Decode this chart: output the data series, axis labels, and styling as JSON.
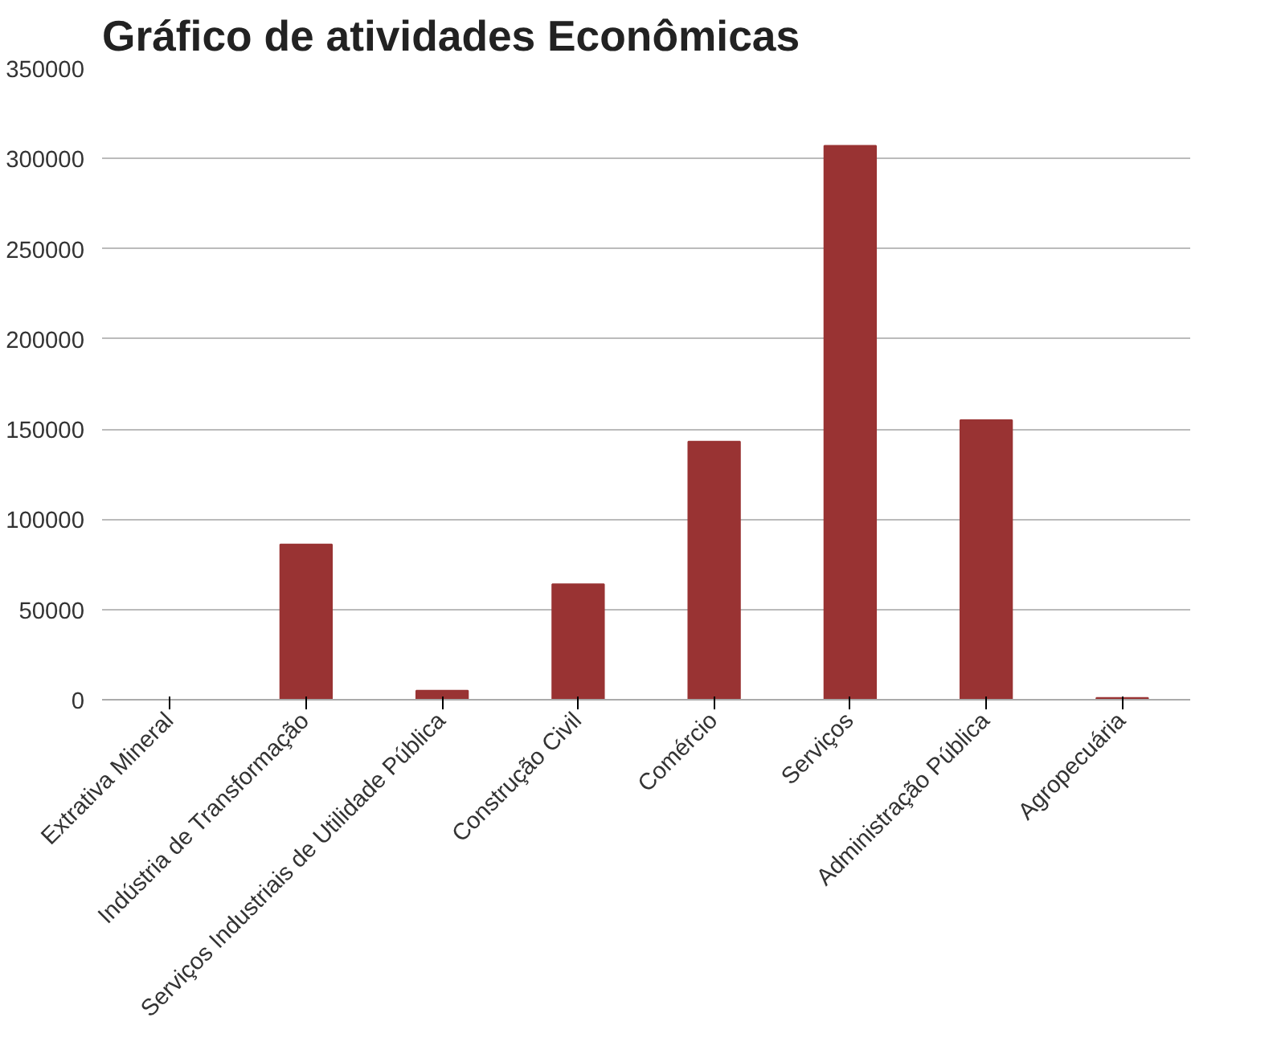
{
  "chart_data": {
    "type": "bar",
    "title": "Gráfico de atividades Econômicas",
    "categories": [
      "Extrativa Mineral",
      "Indústria de Transformação",
      "Serviços Industriais de Utilidade Pública",
      "Construção Civil",
      "Comércio",
      "Serviços",
      "Administração Pública",
      "Agropecuária"
    ],
    "values": [
      0,
      86000,
      5000,
      64000,
      143000,
      307000,
      155000,
      1000
    ],
    "color": "#993333",
    "ylim": [
      0,
      350000
    ],
    "yticks": [
      0,
      50000,
      100000,
      150000,
      200000,
      250000,
      300000,
      350000
    ],
    "grid": "y"
  }
}
